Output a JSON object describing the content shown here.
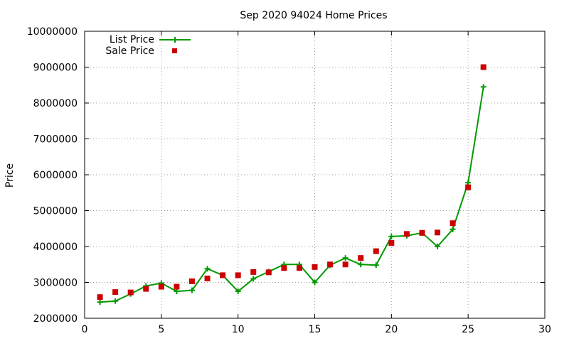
{
  "chart_data": {
    "type": "line",
    "title": "Sep 2020 94024 Home Prices",
    "xlabel": "",
    "ylabel": "Price",
    "xlim": [
      0,
      30
    ],
    "ylim": [
      2000000,
      10000000
    ],
    "xticks": [
      0,
      5,
      10,
      15,
      20,
      25,
      30
    ],
    "yticks": [
      2000000,
      3000000,
      4000000,
      5000000,
      6000000,
      7000000,
      8000000,
      9000000,
      10000000
    ],
    "grid": true,
    "legend_position": "top-left",
    "series": [
      {
        "name": "List Price",
        "style": "line-with-plus-markers",
        "color": "#009900",
        "x": [
          1,
          2,
          3,
          4,
          5,
          6,
          7,
          8,
          9,
          10,
          11,
          12,
          13,
          14,
          15,
          16,
          17,
          18,
          19,
          20,
          21,
          22,
          23,
          24,
          25,
          26
        ],
        "values": [
          2450000,
          2480000,
          2680000,
          2900000,
          2980000,
          2750000,
          2780000,
          3380000,
          3200000,
          2750000,
          3100000,
          3300000,
          3500000,
          3500000,
          3000000,
          3480000,
          3680000,
          3500000,
          3480000,
          4280000,
          4300000,
          4380000,
          4000000,
          4480000,
          5780000,
          8450000
        ]
      },
      {
        "name": "Sale Price",
        "style": "square-markers",
        "color": "#cc0000",
        "x": [
          1,
          2,
          3,
          4,
          5,
          6,
          7,
          8,
          9,
          10,
          11,
          12,
          13,
          14,
          15,
          16,
          17,
          18,
          19,
          20,
          21,
          22,
          23,
          24,
          25,
          26
        ],
        "values": [
          2590000,
          2730000,
          2720000,
          2820000,
          2880000,
          2880000,
          3030000,
          3110000,
          3200000,
          3200000,
          3290000,
          3280000,
          3400000,
          3400000,
          3430000,
          3500000,
          3500000,
          3680000,
          3870000,
          4100000,
          4350000,
          4380000,
          4390000,
          4650000,
          5650000,
          9000000
        ]
      }
    ]
  }
}
